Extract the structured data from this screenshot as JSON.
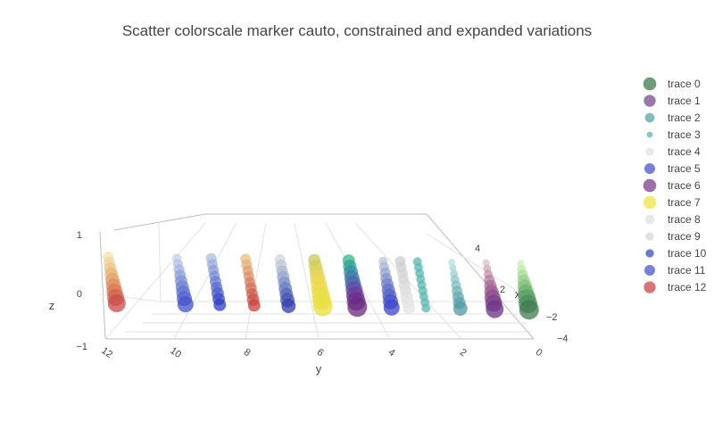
{
  "chart_data": {
    "type": "scatter3d",
    "title": "Scatter colorscale marker cauto, constrained and expanded variations",
    "axes": {
      "x": {
        "label": "x",
        "ticks": [
          "−4",
          "−2",
          "0",
          "2",
          "4"
        ]
      },
      "y": {
        "label": "y",
        "ticks": [
          "12",
          "10",
          "8",
          "6",
          "4",
          "2",
          "0"
        ]
      },
      "z": {
        "label": "z",
        "ticks": [
          "−1",
          "0",
          "1"
        ]
      }
    },
    "legend_position": "right",
    "series": [
      {
        "name": "trace 0",
        "color": "#3d7a4d",
        "y": 0,
        "x": [
          -4,
          -3,
          -2,
          -1,
          0,
          1,
          2,
          3,
          4
        ],
        "sizes": [
          22,
          21,
          20,
          18,
          16,
          14,
          12,
          10,
          8
        ],
        "colors": [
          "#3d7a4d",
          "#4a8c58",
          "#5a9e63",
          "#6cb06f",
          "#7fc07b",
          "#93cf88",
          "#a8dc96",
          "#bde7a6",
          "#d0f0b6"
        ]
      },
      {
        "name": "trace 1",
        "color": "#7b4a8c",
        "y": 1,
        "x": [
          -4,
          -3,
          -2,
          -1,
          0,
          1,
          2,
          3,
          4
        ],
        "sizes": [
          20,
          19,
          18,
          16,
          14,
          12,
          10,
          9,
          8
        ],
        "colors": [
          "#6a3382",
          "#7c3f8e",
          "#8c4a8c",
          "#9a5a90",
          "#a86a95",
          "#b77d9d",
          "#c592a8",
          "#d3a8b5",
          "#e0bfc4"
        ]
      },
      {
        "name": "trace 2",
        "color": "#5aa3a8",
        "y": 2,
        "x": [
          -4,
          -3,
          -2,
          -1,
          0,
          1,
          2,
          3,
          4
        ],
        "sizes": [
          16,
          14,
          13,
          12,
          11,
          10,
          9,
          8,
          8
        ],
        "colors": [
          "#4d9aa0",
          "#5aa3a8",
          "#67acb0",
          "#74b5b8",
          "#81bec0",
          "#8ec6c8",
          "#9bcfd0",
          "#a8d7d8",
          "#b5dfe0"
        ]
      },
      {
        "name": "trace 3",
        "color": "#5ab8b0",
        "y": 3,
        "x": [
          -4,
          -3,
          -2,
          -1,
          0,
          1,
          2,
          3,
          4
        ],
        "sizes": [
          10,
          10,
          10,
          10,
          10,
          10,
          10,
          10,
          10
        ],
        "colors": [
          "#5ab8b0",
          "#5ab8b0",
          "#5ab8b0",
          "#5ab8b0",
          "#5ab8b0",
          "#5ab8b0",
          "#5ab8b0",
          "#5ab8b0",
          "#5ab8b0"
        ]
      },
      {
        "name": "trace 4",
        "color": "#e0e0e0",
        "y": 3.5,
        "x": [
          -4,
          -3,
          -2,
          -1,
          0,
          1,
          2,
          3,
          4
        ],
        "sizes": [
          14,
          14,
          14,
          13,
          13,
          12,
          12,
          12,
          12
        ],
        "colors": [
          "#e6e6e6",
          "#e3e3e3",
          "#dfdfdf",
          "#dcdcdc",
          "#d9d9d9",
          "#d6d6d6",
          "#d3d3d3",
          "#d0d0d0",
          "#cdcdcd"
        ]
      },
      {
        "name": "trace 5",
        "color": "#4a56c8",
        "y": 4,
        "x": [
          -4,
          -3,
          -2,
          -1,
          0,
          1,
          2,
          3,
          4
        ],
        "sizes": [
          18,
          17,
          16,
          15,
          14,
          13,
          12,
          11,
          10
        ],
        "colors": [
          "#3846c8",
          "#4452c8",
          "#5260c8",
          "#6270c8",
          "#7282ca",
          "#8494cc",
          "#96a6d0",
          "#a8b6d4",
          "#bac4d8"
        ]
      },
      {
        "name": "trace 6",
        "color": "#7d3d8c",
        "y": 5,
        "x": [
          -4,
          -3,
          -2,
          -1,
          0,
          1,
          2,
          3,
          4
        ],
        "sizes": [
          22,
          21,
          20,
          19,
          18,
          17,
          16,
          15,
          14
        ],
        "colors": [
          "#6a2a80",
          "#722a8c",
          "#6a3a9a",
          "#5a4ea6",
          "#4a62aa",
          "#3c78a8",
          "#2f8ea2",
          "#2aa296",
          "#3ab484"
        ]
      },
      {
        "name": "trace 7",
        "color": "#f0e44a",
        "y": 6,
        "x": [
          -4,
          -3,
          -2,
          -1,
          0,
          1,
          2,
          3,
          4
        ],
        "sizes": [
          22,
          21,
          20,
          19,
          18,
          17,
          16,
          15,
          14
        ],
        "colors": [
          "#e8e040",
          "#eade44",
          "#ecdc48",
          "#eeda4c",
          "#f0d850",
          "#e6d454",
          "#dcd058",
          "#d2cc5c",
          "#c8c860"
        ]
      },
      {
        "name": "trace 8",
        "color": "#e0e0e0",
        "y": 7,
        "x": [
          -4,
          -3,
          -2,
          -1,
          0,
          1,
          2,
          3,
          4
        ],
        "sizes": [
          16,
          16,
          15,
          15,
          14,
          14,
          13,
          13,
          12
        ],
        "colors": [
          "#2e3aa8",
          "#4050b0",
          "#5466b8",
          "#6a7cc0",
          "#8092c8",
          "#96a6cc",
          "#aab8d2",
          "#bec8d6",
          "#d0d6dc"
        ]
      },
      {
        "name": "trace 9",
        "color": "#d8d8d8",
        "y": 8,
        "x": [
          -4,
          -3,
          -2,
          -1,
          0,
          1,
          2,
          3,
          4
        ],
        "sizes": [
          14,
          14,
          13,
          13,
          12,
          12,
          12,
          12,
          12
        ],
        "colors": [
          "#c84040",
          "#cc5048",
          "#d06050",
          "#d47058",
          "#d88060",
          "#dc9068",
          "#e0a070",
          "#e4b078",
          "#e8c080"
        ]
      },
      {
        "name": "trace 10",
        "color": "#3a4cc0",
        "y": 9,
        "x": [
          -4,
          -3,
          -2,
          -1,
          0,
          1,
          2,
          3,
          4
        ],
        "sizes": [
          14,
          14,
          14,
          13,
          13,
          12,
          12,
          12,
          12
        ],
        "colors": [
          "#2c3cc0",
          "#3c4cc4",
          "#4c5cc8",
          "#5c6ccc",
          "#6c7cd0",
          "#7c8cd4",
          "#8c9cd8",
          "#9cacdc",
          "#acbce0"
        ]
      },
      {
        "name": "trace 11",
        "color": "#4a56c8",
        "y": 10,
        "x": [
          -4,
          -3,
          -2,
          -1,
          0,
          1,
          2,
          3,
          4
        ],
        "sizes": [
          18,
          17,
          16,
          15,
          14,
          13,
          12,
          11,
          10
        ],
        "colors": [
          "#4252c8",
          "#5262cc",
          "#6272d0",
          "#7282d4",
          "#8292d8",
          "#92a2dc",
          "#a2b2e0",
          "#b2c2e4",
          "#c2d2e8"
        ]
      },
      {
        "name": "trace 12",
        "color": "#c84a4a",
        "y": 12,
        "x": [
          -4,
          -3,
          -2,
          -1,
          0,
          1,
          2,
          3,
          4
        ],
        "sizes": [
          20,
          19,
          18,
          17,
          16,
          15,
          14,
          13,
          12
        ],
        "colors": [
          "#c84848",
          "#d0604c",
          "#d87850",
          "#e08c5c",
          "#e4a068",
          "#e8b478",
          "#ecc488",
          "#f0d498",
          "#f4e2a8"
        ]
      }
    ]
  }
}
